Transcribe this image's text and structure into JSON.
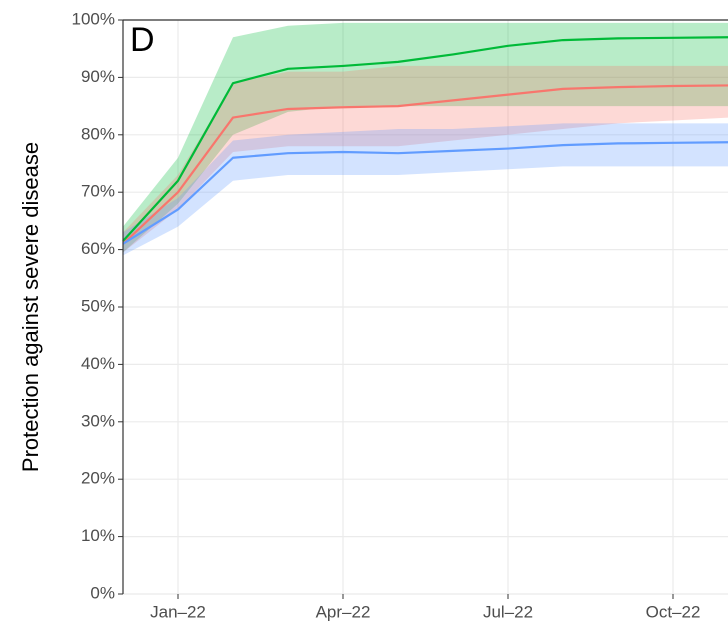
{
  "chart_data": {
    "type": "line",
    "panel_label": "D",
    "y_label": "Protection against severe disease",
    "x": [
      "2021-12",
      "2022-01",
      "2022-02",
      "2022-03",
      "2022-04",
      "2022-05",
      "2022-06",
      "2022-07",
      "2022-08",
      "2022-09",
      "2022-10",
      "2022-11"
    ],
    "series": [
      {
        "color": "#00ba38",
        "values": [
          61.5,
          72,
          89,
          91.5,
          92,
          92.7,
          94,
          95.5,
          96.5,
          96.8,
          96.9,
          97
        ],
        "lower": [
          59.5,
          68,
          80,
          84,
          85,
          85,
          85,
          85,
          85,
          85,
          85,
          85
        ],
        "upper": [
          64,
          76,
          97,
          99,
          99.5,
          99.5,
          99.5,
          99.5,
          99.5,
          99.5,
          99.5,
          99.5
        ]
      },
      {
        "color": "#f8766d",
        "values": [
          61,
          70,
          83,
          84.5,
          84.8,
          85,
          86,
          87,
          88,
          88.3,
          88.5,
          88.6
        ],
        "lower": [
          59.5,
          67,
          77,
          78,
          78,
          78,
          79,
          80,
          81,
          82,
          82.5,
          83
        ],
        "upper": [
          63,
          73,
          89,
          91,
          91,
          92,
          92,
          92,
          92,
          92,
          92,
          92
        ]
      },
      {
        "color": "#619cff",
        "values": [
          61,
          67,
          76,
          76.8,
          77,
          76.8,
          77.2,
          77.6,
          78.2,
          78.5,
          78.6,
          78.7
        ],
        "lower": [
          59,
          64,
          72,
          73,
          73,
          73,
          73.5,
          74,
          74.5,
          74.5,
          74.5,
          74.5
        ],
        "upper": [
          63,
          69,
          79,
          80,
          80.5,
          81,
          81,
          81.5,
          82,
          82,
          82,
          82
        ]
      }
    ],
    "xlim": [
      "2021-12",
      "2022-11"
    ],
    "xticks": [
      {
        "value": "2022-01",
        "label": "Jan–22"
      },
      {
        "value": "2022-04",
        "label": "Apr–22"
      },
      {
        "value": "2022-07",
        "label": "Jul–22"
      },
      {
        "value": "2022-10",
        "label": "Oct–22"
      }
    ],
    "ylim": [
      0,
      100
    ],
    "yticks": [
      {
        "value": 0,
        "label": "0%"
      },
      {
        "value": 10,
        "label": "10%"
      },
      {
        "value": 20,
        "label": "20%"
      },
      {
        "value": 30,
        "label": "30%"
      },
      {
        "value": 40,
        "label": "40%"
      },
      {
        "value": 50,
        "label": "50%"
      },
      {
        "value": 60,
        "label": "60%"
      },
      {
        "value": 70,
        "label": "70%"
      },
      {
        "value": 80,
        "label": "80%"
      },
      {
        "value": 90,
        "label": "90%"
      },
      {
        "value": 100,
        "label": "100%"
      }
    ],
    "grid": true
  }
}
